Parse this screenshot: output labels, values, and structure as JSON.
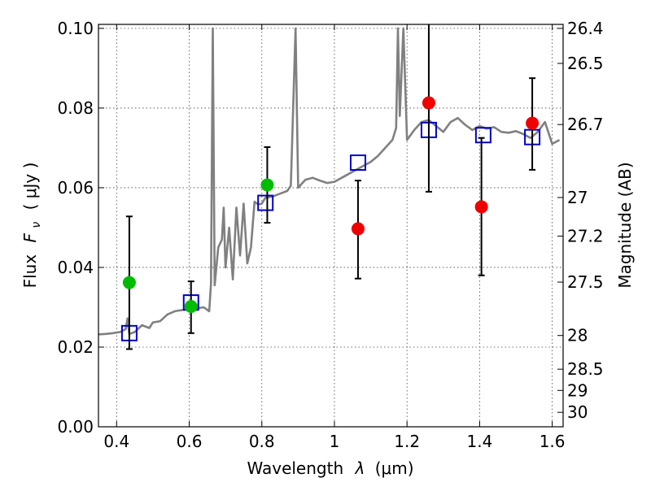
{
  "chart_data": {
    "type": "scatter",
    "xlabel": "Wavelength",
    "xlabel_symbol": "λ",
    "xlabel_unit": "(μm)",
    "ylabel": "Flux",
    "ylabel_symbol": "F",
    "ylabel_sub": "ν",
    "ylabel_unit": "( μJy )",
    "y2label": "Magnitude (AB)",
    "xlim": [
      0.35,
      1.63
    ],
    "ylim": [
      0.0,
      0.101
    ],
    "grid": true,
    "x_ticks": [
      {
        "value": 0.4,
        "label": "0.4"
      },
      {
        "value": 0.6,
        "label": "0.6"
      },
      {
        "value": 0.8,
        "label": "0.8"
      },
      {
        "value": 1.0,
        "label": "1"
      },
      {
        "value": 1.2,
        "label": "1.2"
      },
      {
        "value": 1.4,
        "label": "1.4"
      },
      {
        "value": 1.6,
        "label": "1.6"
      }
    ],
    "y_ticks": [
      {
        "value": 0.0,
        "label": "0.00"
      },
      {
        "value": 0.02,
        "label": "0.02"
      },
      {
        "value": 0.04,
        "label": "0.04"
      },
      {
        "value": 0.06,
        "label": "0.06"
      },
      {
        "value": 0.08,
        "label": "0.08"
      },
      {
        "value": 0.1,
        "label": "0.10"
      }
    ],
    "mag_ticks": [
      {
        "mag": 26.4,
        "label": "26.4"
      },
      {
        "mag": 26.5,
        "label": "26.5"
      },
      {
        "mag": 26.7,
        "label": "26.7"
      },
      {
        "mag": 27.0,
        "label": "27"
      },
      {
        "mag": 27.2,
        "label": "27.2"
      },
      {
        "mag": 27.5,
        "label": "27.5"
      },
      {
        "mag": 28.0,
        "label": "28"
      },
      {
        "mag": 28.5,
        "label": "28.5"
      },
      {
        "mag": 29.0,
        "label": "29"
      },
      {
        "mag": 30.0,
        "label": "30"
      }
    ],
    "series": [
      {
        "kind": "line",
        "color": "#808080",
        "points": [
          [
            0.35,
            0.0232
          ],
          [
            0.37,
            0.0233
          ],
          [
            0.39,
            0.0235
          ],
          [
            0.41,
            0.0238
          ],
          [
            0.425,
            0.0245
          ],
          [
            0.43,
            0.0272
          ],
          [
            0.435,
            0.0233
          ],
          [
            0.45,
            0.0238
          ],
          [
            0.47,
            0.0255
          ],
          [
            0.49,
            0.0248
          ],
          [
            0.5,
            0.0262
          ],
          [
            0.52,
            0.0265
          ],
          [
            0.54,
            0.0282
          ],
          [
            0.56,
            0.029
          ],
          [
            0.58,
            0.0293
          ],
          [
            0.6,
            0.0295
          ],
          [
            0.62,
            0.0297
          ],
          [
            0.64,
            0.03
          ],
          [
            0.655,
            0.029
          ],
          [
            0.66,
            0.036
          ],
          [
            0.665,
            0.1
          ],
          [
            0.67,
            0.0355
          ],
          [
            0.68,
            0.045
          ],
          [
            0.69,
            0.047
          ],
          [
            0.695,
            0.055
          ],
          [
            0.7,
            0.04
          ],
          [
            0.71,
            0.05
          ],
          [
            0.72,
            0.037
          ],
          [
            0.73,
            0.055
          ],
          [
            0.74,
            0.043
          ],
          [
            0.75,
            0.056
          ],
          [
            0.76,
            0.041
          ],
          [
            0.77,
            0.045
          ],
          [
            0.78,
            0.0565
          ],
          [
            0.79,
            0.0558
          ],
          [
            0.8,
            0.056
          ],
          [
            0.81,
            0.0575
          ],
          [
            0.83,
            0.0578
          ],
          [
            0.85,
            0.0585
          ],
          [
            0.87,
            0.0592
          ],
          [
            0.88,
            0.0605
          ],
          [
            0.893,
            0.1
          ],
          [
            0.9,
            0.06
          ],
          [
            0.92,
            0.062
          ],
          [
            0.94,
            0.0625
          ],
          [
            0.96,
            0.0618
          ],
          [
            0.98,
            0.0612
          ],
          [
            1.0,
            0.0615
          ],
          [
            1.02,
            0.0625
          ],
          [
            1.04,
            0.0635
          ],
          [
            1.06,
            0.0645
          ],
          [
            1.08,
            0.0655
          ],
          [
            1.1,
            0.0665
          ],
          [
            1.12,
            0.068
          ],
          [
            1.14,
            0.07
          ],
          [
            1.16,
            0.072
          ],
          [
            1.17,
            0.075
          ],
          [
            1.175,
            0.1
          ],
          [
            1.18,
            0.078
          ],
          [
            1.19,
            0.1
          ],
          [
            1.2,
            0.072
          ],
          [
            1.22,
            0.0745
          ],
          [
            1.24,
            0.0765
          ],
          [
            1.26,
            0.077
          ],
          [
            1.28,
            0.0755
          ],
          [
            1.3,
            0.074
          ],
          [
            1.32,
            0.0765
          ],
          [
            1.34,
            0.0775
          ],
          [
            1.36,
            0.0758
          ],
          [
            1.38,
            0.0745
          ],
          [
            1.4,
            0.0755
          ],
          [
            1.42,
            0.0748
          ],
          [
            1.44,
            0.0752
          ],
          [
            1.46,
            0.074
          ],
          [
            1.48,
            0.0738
          ],
          [
            1.5,
            0.0742
          ],
          [
            1.52,
            0.0735
          ],
          [
            1.54,
            0.0725
          ],
          [
            1.56,
            0.074
          ],
          [
            1.58,
            0.0765
          ],
          [
            1.6,
            0.071
          ],
          [
            1.62,
            0.072
          ]
        ]
      },
      {
        "kind": "points",
        "marker": "square",
        "color": "#0000cc",
        "points": [
          [
            0.435,
            0.0235
          ],
          [
            0.605,
            0.0312
          ],
          [
            0.81,
            0.0562
          ],
          [
            1.065,
            0.0663
          ],
          [
            1.26,
            0.0745
          ],
          [
            1.41,
            0.0732
          ],
          [
            1.545,
            0.0727
          ]
        ]
      },
      {
        "kind": "errorbars",
        "marker": "circle",
        "color": "#00bb00",
        "points": [
          {
            "x": 0.435,
            "y": 0.0362,
            "lo": 0.0195,
            "hi": 0.0528
          },
          {
            "x": 0.605,
            "y": 0.0302,
            "lo": 0.0235,
            "hi": 0.0365
          },
          {
            "x": 0.815,
            "y": 0.0607,
            "lo": 0.0512,
            "hi": 0.0702
          }
        ]
      },
      {
        "kind": "errorbars",
        "marker": "circle",
        "color": "#ee0000",
        "points": [
          {
            "x": 1.065,
            "y": 0.0497,
            "lo": 0.0372,
            "hi": 0.0618
          },
          {
            "x": 1.26,
            "y": 0.0813,
            "lo": 0.059,
            "hi": 0.1055
          },
          {
            "x": 1.405,
            "y": 0.0552,
            "lo": 0.038,
            "hi": 0.0725
          },
          {
            "x": 1.545,
            "y": 0.0762,
            "lo": 0.0645,
            "hi": 0.0875
          }
        ]
      }
    ]
  }
}
